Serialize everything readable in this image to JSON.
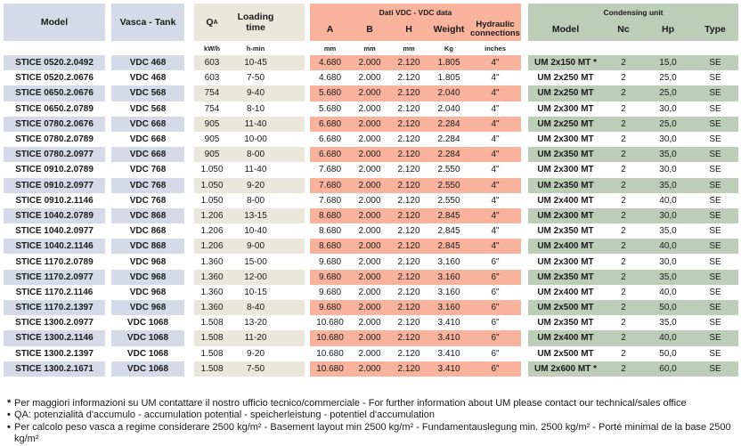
{
  "colors": {
    "lavender": "#d6dae8",
    "beige": "#eae8da",
    "salmon": "#f9b39c",
    "green": "#bccdb8"
  },
  "header": {
    "model": "Model",
    "tank": "Vasca - Tank",
    "qa_main": "Q",
    "qa_sub": "A",
    "loading": "Loading time",
    "vdc_group": "Dati VDC - VDC data",
    "a": "A",
    "b": "B",
    "h": "H",
    "weight": "Weight",
    "hydraulic": "Hydraulic connections",
    "cu_group": "Condensing unit",
    "cu_model": "Model",
    "nc": "Nc",
    "hp": "Hp",
    "type": "Type"
  },
  "units": {
    "qa": "kW/h",
    "loading": "h-min",
    "a": "mm",
    "b": "mm",
    "h": "mm",
    "weight": "Kg",
    "hydraulic": "inches"
  },
  "rows": [
    {
      "model": "STICE 0520.2.0492",
      "tank": "VDC 468",
      "qa": "603",
      "loading": "10-45",
      "a": "4.680",
      "b": "2.000",
      "h": "2.120",
      "weight": "1.805",
      "hyd": "4\"",
      "cu_model": "UM 2x150 MT *",
      "nc": "2",
      "hp": "15,0",
      "type": "SE"
    },
    {
      "model": "STICE 0520.2.0676",
      "tank": "VDC 468",
      "qa": "603",
      "loading": "7-50",
      "a": "4.680",
      "b": "2.000",
      "h": "2.120",
      "weight": "1.805",
      "hyd": "4\"",
      "cu_model": "UM 2x250 MT",
      "nc": "2",
      "hp": "25,0",
      "type": "SE"
    },
    {
      "model": "STICE 0650.2.0676",
      "tank": "VDC 568",
      "qa": "754",
      "loading": "9-40",
      "a": "5.680",
      "b": "2.000",
      "h": "2.120",
      "weight": "2.040",
      "hyd": "4\"",
      "cu_model": "UM 2x250 MT",
      "nc": "2",
      "hp": "25,0",
      "type": "SE"
    },
    {
      "model": "STICE 0650.2.0789",
      "tank": "VDC 568",
      "qa": "754",
      "loading": "8-10",
      "a": "5.680",
      "b": "2.000",
      "h": "2.120",
      "weight": "2.040",
      "hyd": "4\"",
      "cu_model": "UM 2x300 MT",
      "nc": "2",
      "hp": "30,0",
      "type": "SE"
    },
    {
      "model": "STICE 0780.2.0676",
      "tank": "VDC 668",
      "qa": "905",
      "loading": "11-40",
      "a": "6.680",
      "b": "2.000",
      "h": "2.120",
      "weight": "2.284",
      "hyd": "4\"",
      "cu_model": "UM 2x250 MT",
      "nc": "2",
      "hp": "25,0",
      "type": "SE"
    },
    {
      "model": "STICE 0780.2.0789",
      "tank": "VDC 668",
      "qa": "905",
      "loading": "10-00",
      "a": "6.680",
      "b": "2.000",
      "h": "2.120",
      "weight": "2.284",
      "hyd": "4\"",
      "cu_model": "UM 2x300 MT",
      "nc": "2",
      "hp": "30,0",
      "type": "SE"
    },
    {
      "model": "STICE 0780.2.0977",
      "tank": "VDC 668",
      "qa": "905",
      "loading": "8-00",
      "a": "6.680",
      "b": "2.000",
      "h": "2.120",
      "weight": "2.284",
      "hyd": "4\"",
      "cu_model": "UM 2x350 MT",
      "nc": "2",
      "hp": "35,0",
      "type": "SE"
    },
    {
      "model": "STICE 0910.2.0789",
      "tank": "VDC 768",
      "qa": "1.050",
      "loading": "11-40",
      "a": "7.680",
      "b": "2.000",
      "h": "2.120",
      "weight": "2.550",
      "hyd": "4\"",
      "cu_model": "UM 2x300 MT",
      "nc": "2",
      "hp": "30,0",
      "type": "SE"
    },
    {
      "model": "STICE 0910.2.0977",
      "tank": "VDC 768",
      "qa": "1.050",
      "loading": "9-20",
      "a": "7.680",
      "b": "2.000",
      "h": "2.120",
      "weight": "2.550",
      "hyd": "4\"",
      "cu_model": "UM 2x350 MT",
      "nc": "2",
      "hp": "35,0",
      "type": "SE"
    },
    {
      "model": "STICE 0910.2.1146",
      "tank": "VDC 768",
      "qa": "1.050",
      "loading": "8-00",
      "a": "7.680",
      "b": "2.000",
      "h": "2.120",
      "weight": "2.550",
      "hyd": "4\"",
      "cu_model": "UM 2x400 MT",
      "nc": "2",
      "hp": "40,0",
      "type": "SE"
    },
    {
      "model": "STICE 1040.2.0789",
      "tank": "VDC 868",
      "qa": "1.206",
      "loading": "13-15",
      "a": "8.680",
      "b": "2.000",
      "h": "2.120",
      "weight": "2.845",
      "hyd": "4\"",
      "cu_model": "UM 2x300 MT",
      "nc": "2",
      "hp": "30,0",
      "type": "SE"
    },
    {
      "model": "STICE 1040.2.0977",
      "tank": "VDC 868",
      "qa": "1.206",
      "loading": "10-40",
      "a": "8.680",
      "b": "2.000",
      "h": "2.120",
      "weight": "2.845",
      "hyd": "4\"",
      "cu_model": "UM 2x350 MT",
      "nc": "2",
      "hp": "35,0",
      "type": "SE"
    },
    {
      "model": "STICE 1040.2.1146",
      "tank": "VDC 868",
      "qa": "1.206",
      "loading": "9-00",
      "a": "8.680",
      "b": "2.000",
      "h": "2.120",
      "weight": "2.845",
      "hyd": "4\"",
      "cu_model": "UM 2x400 MT",
      "nc": "2",
      "hp": "40,0",
      "type": "SE"
    },
    {
      "model": "STICE 1170.2.0789",
      "tank": "VDC 968",
      "qa": "1.360",
      "loading": "15-00",
      "a": "9.680",
      "b": "2.000",
      "h": "2.120",
      "weight": "3.160",
      "hyd": "6\"",
      "cu_model": "UM 2x300 MT",
      "nc": "2",
      "hp": "30,0",
      "type": "SE"
    },
    {
      "model": "STICE 1170.2.0977",
      "tank": "VDC 968",
      "qa": "1.360",
      "loading": "12-00",
      "a": "9.680",
      "b": "2.000",
      "h": "2.120",
      "weight": "3.160",
      "hyd": "6\"",
      "cu_model": "UM 2x350 MT",
      "nc": "2",
      "hp": "35,0",
      "type": "SE"
    },
    {
      "model": "STICE 1170.2.1146",
      "tank": "VDC 968",
      "qa": "1.360",
      "loading": "10-15",
      "a": "9.680",
      "b": "2.000",
      "h": "2.120",
      "weight": "3.160",
      "hyd": "6\"",
      "cu_model": "UM 2x400 MT",
      "nc": "2",
      "hp": "40,0",
      "type": "SE"
    },
    {
      "model": "STICE 1170.2.1397",
      "tank": "VDC 968",
      "qa": "1.360",
      "loading": "8-40",
      "a": "9.680",
      "b": "2.000",
      "h": "2.120",
      "weight": "3.160",
      "hyd": "6\"",
      "cu_model": "UM 2x500 MT",
      "nc": "2",
      "hp": "50,0",
      "type": "SE"
    },
    {
      "model": "STICE 1300.2.0977",
      "tank": "VDC 1068",
      "qa": "1.508",
      "loading": "13-20",
      "a": "10.680",
      "b": "2.000",
      "h": "2.120",
      "weight": "3.410",
      "hyd": "6\"",
      "cu_model": "UM 2x350 MT",
      "nc": "2",
      "hp": "35,0",
      "type": "SE"
    },
    {
      "model": "STICE 1300.2.1146",
      "tank": "VDC 1068",
      "qa": "1.508",
      "loading": "11-20",
      "a": "10.680",
      "b": "2.000",
      "h": "2.120",
      "weight": "3.410",
      "hyd": "6\"",
      "cu_model": "UM 2x400 MT",
      "nc": "2",
      "hp": "40,0",
      "type": "SE"
    },
    {
      "model": "STICE 1300.2.1397",
      "tank": "VDC 1068",
      "qa": "1.508",
      "loading": "9-20",
      "a": "10.680",
      "b": "2.000",
      "h": "2.120",
      "weight": "3.410",
      "hyd": "6\"",
      "cu_model": "UM 2x500 MT",
      "nc": "2",
      "hp": "50,0",
      "type": "SE"
    },
    {
      "model": "STICE 1300.2.1671",
      "tank": "VDC 1068",
      "qa": "1.508",
      "loading": "7-50",
      "a": "10.680",
      "b": "2.000",
      "h": "2.120",
      "weight": "3.410",
      "hyd": "6\"",
      "cu_model": "UM 2x600 MT *",
      "nc": "2",
      "hp": "60,0",
      "type": "SE"
    }
  ],
  "footnotes": [
    {
      "marker": "*",
      "text": "Per maggiori informazioni su UM contattare il nostro ufficio tecnico/commerciale - For further information about UM please contact our technical/sales office"
    },
    {
      "marker": "•",
      "text": "QA: potenzialità d'accumulo - accumulation potential - speicherleistung - potentiel d'accumulation"
    },
    {
      "marker": "•",
      "text": "Per calcolo peso vasca a regime considerare 2500 kg/m² - Basement layout min 2500 kg/m² - Fundamentauslegung min. 2500 kg/m² - Porté minimal de la base 2500 kg/m²"
    }
  ]
}
